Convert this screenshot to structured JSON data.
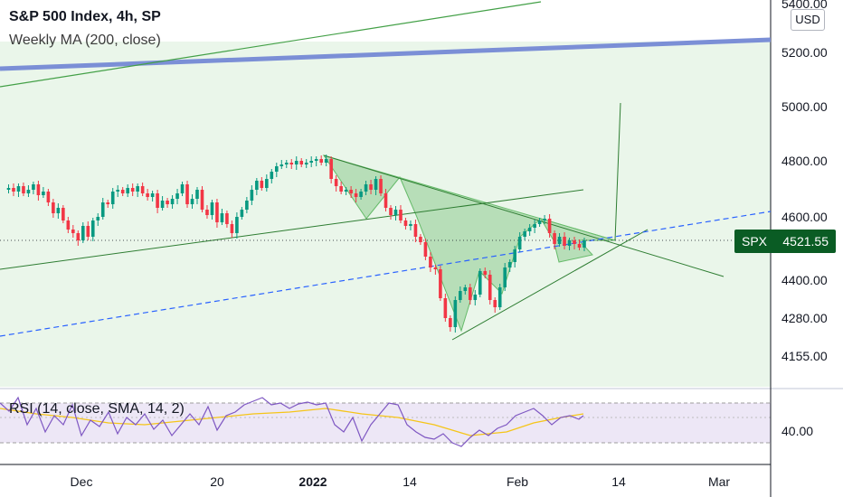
{
  "legend": {
    "title": "S&P 500 Index, 4h, SP",
    "ma": "Weekly MA (200, close)",
    "rsi": "RSI (14, close, SMA, 14, 2)"
  },
  "currency_button": "USD",
  "price_tag": {
    "symbol": "SPX",
    "value": "4521.55"
  },
  "price_axis": [
    "5400.00",
    "5200.00",
    "5000.00",
    "4800.00",
    "4600.00",
    "4400.00",
    "4280.00",
    "4155.00"
  ],
  "rsi_axis": [
    "40.00"
  ],
  "time_axis": [
    "Dec",
    "20",
    "2022",
    "14",
    "Feb",
    "14",
    "Mar"
  ],
  "colors": {
    "bull": "#089981",
    "bear": "#f23645",
    "pattern_fill": "#a5d6a7",
    "ma_line": "#7b8fd6",
    "trend_dashed": "#2962ff",
    "rsi_line": "#7e57c2",
    "rsi_ma": "#f5c518"
  }
}
